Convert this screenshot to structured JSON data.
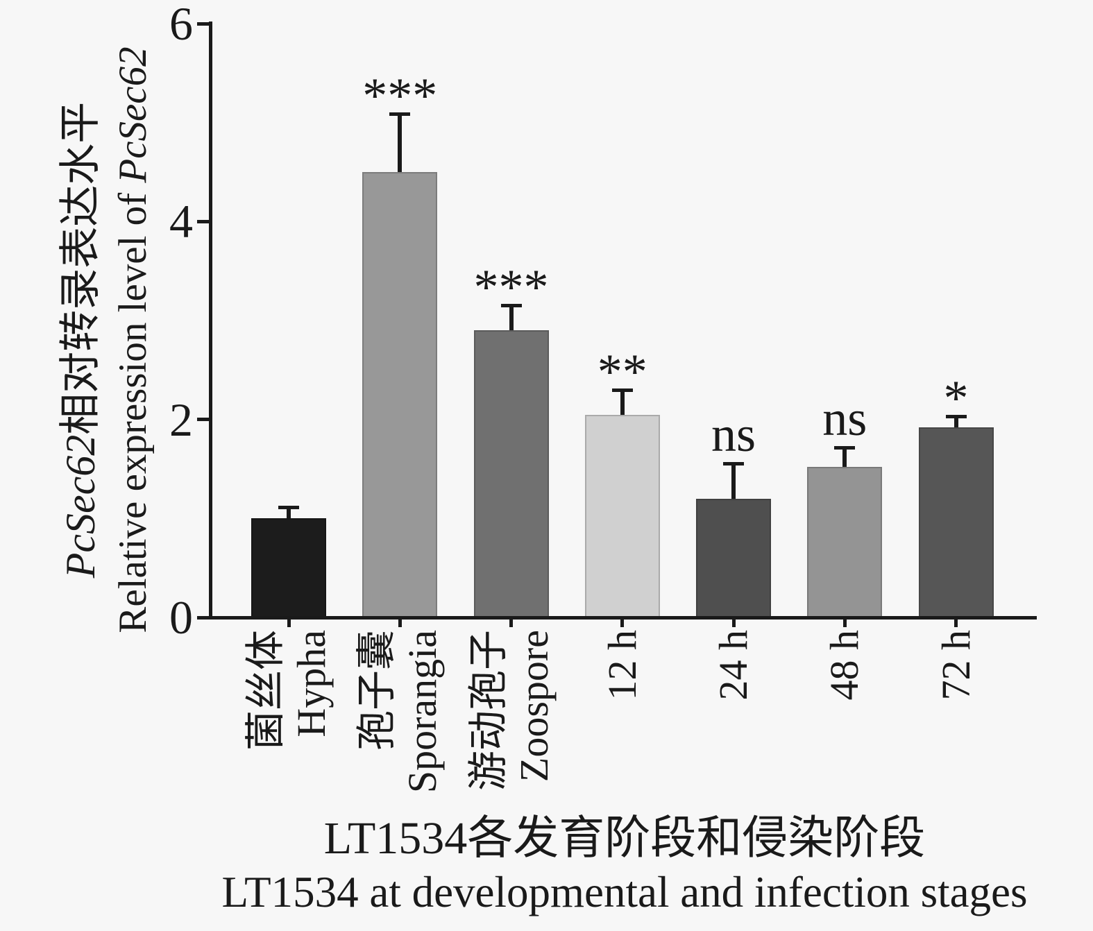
{
  "figure": {
    "background": "#f7f7f7",
    "axis_color": "#1a1a1a",
    "text_color": "#1a1a1a"
  },
  "chart_data": {
    "type": "bar",
    "title": "",
    "ylabel_zh": {
      "italic": "PcSec62",
      "rest": "相对转录表达水平"
    },
    "ylabel_en": {
      "rest": "Relative expression level of ",
      "italic": "PcSec62"
    },
    "xlabel_zh": "LT1534各发育阶段和侵染阶段",
    "xlabel_en": "LT1534 at developmental and infection stages",
    "ylim": [
      0,
      6
    ],
    "yticks": [
      0,
      2,
      4,
      6
    ],
    "grid": false,
    "legend": null,
    "categories": [
      {
        "label_zh": "菌丝体",
        "label_en": "Hypha"
      },
      {
        "label_zh": "孢子囊",
        "label_en": "Sporangia"
      },
      {
        "label_zh": "游动孢子",
        "label_en": "Zoospore"
      },
      {
        "label_zh": "",
        "label_en": "12 h"
      },
      {
        "label_zh": "",
        "label_en": "24 h"
      },
      {
        "label_zh": "",
        "label_en": "48 h"
      },
      {
        "label_zh": "",
        "label_en": "72 h"
      }
    ],
    "values": [
      1.0,
      4.5,
      2.9,
      2.05,
      1.2,
      1.52,
      1.92
    ],
    "errors": [
      0.13,
      0.6,
      0.27,
      0.26,
      0.37,
      0.21,
      0.13
    ],
    "significance": [
      "",
      "***",
      "***",
      "**",
      "ns",
      "ns",
      "*"
    ],
    "bar_colors": [
      "#1c1c1c",
      "#989898",
      "#707070",
      "#d0d0d0",
      "#4f4f4f",
      "#949494",
      "#565656"
    ]
  }
}
